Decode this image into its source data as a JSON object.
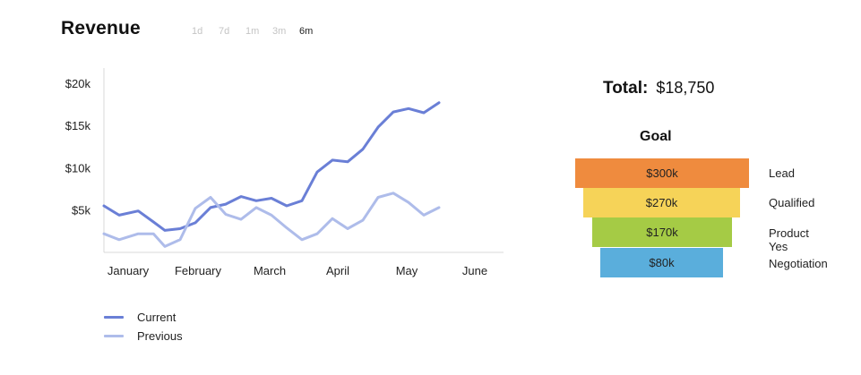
{
  "header": {
    "title": "Revenue",
    "ranges": [
      {
        "label": "1d",
        "active": false
      },
      {
        "label": "7d",
        "active": false
      },
      {
        "label": "1m",
        "active": false
      },
      {
        "label": "3m",
        "active": false
      },
      {
        "label": "6m",
        "active": true
      }
    ]
  },
  "legend": [
    {
      "label": "Current",
      "color": "#6a7fd6"
    },
    {
      "label": "Previous",
      "color": "#aebcea"
    }
  ],
  "summary": {
    "total_label": "Total:",
    "total_value": "$18,750"
  },
  "goal": {
    "title": "Goal",
    "stages": [
      {
        "value": "$300k",
        "label": "Lead",
        "color": "#ef8b3e"
      },
      {
        "value": "$270k",
        "label": "Qualified",
        "color": "#f6d358"
      },
      {
        "value": "$170k",
        "label": "Product Yes",
        "color": "#a5cb45"
      },
      {
        "value": "$80k",
        "label": "Negotiation",
        "color": "#5aaedc"
      }
    ]
  },
  "chart_data": {
    "type": "line",
    "title": "Revenue",
    "x": [
      0,
      0.2,
      0.45,
      0.65,
      0.8,
      1.0,
      1.2,
      1.4,
      1.6,
      1.8,
      2.0,
      2.2,
      2.4,
      2.6,
      2.8,
      3.0,
      3.2,
      3.4,
      3.6,
      3.8,
      4.0,
      4.2,
      4.4,
      4.6,
      4.8,
      5.0
    ],
    "xtick_labels": [
      "January",
      "February",
      "March",
      "April",
      "May",
      "June"
    ],
    "ylim": [
      0,
      22000
    ],
    "yticks": [
      5000,
      10000,
      15000,
      20000
    ],
    "ytick_labels": [
      "$5k",
      "$10k",
      "$15k",
      "$20k"
    ],
    "grid": false,
    "series": [
      {
        "name": "Current",
        "color": "#6a7fd6",
        "values": [
          5500,
          4400,
          4900,
          3600,
          2600,
          2800,
          3500,
          5300,
          5700,
          6600,
          6100,
          6400,
          5500,
          6100,
          9500,
          10900,
          10700,
          12200,
          14800,
          16600,
          17000,
          16500,
          17700,
          17700,
          17700,
          17700
        ]
      },
      {
        "name": "Previous",
        "color": "#aebcea",
        "values": [
          2200,
          1500,
          2200,
          2200,
          700,
          1500,
          5200,
          6500,
          4500,
          3900,
          5300,
          4400,
          2900,
          1500,
          2200,
          4000,
          2800,
          3800,
          6500,
          7000,
          5900,
          4400,
          5300,
          5300,
          5300,
          5300
        ]
      }
    ]
  }
}
